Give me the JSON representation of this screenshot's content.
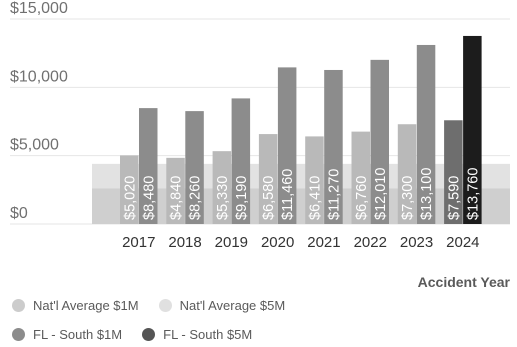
{
  "chart_data": {
    "type": "bar",
    "categories": [
      "2017",
      "2018",
      "2019",
      "2020",
      "2021",
      "2022",
      "2023",
      "2024"
    ],
    "xlabel": "Accident Year",
    "ylabel": "",
    "ylim": [
      0,
      15000
    ],
    "y_ticks": [
      "$0",
      "$5,000",
      "$10,000",
      "$15,000"
    ],
    "y_tick_values": [
      0,
      5000,
      10000,
      15000
    ],
    "grid": true,
    "legend_position": "bottom-left",
    "background_series": [
      {
        "name": "Nat'l Average $1M",
        "value": 2600,
        "color": "#cfcfcf"
      },
      {
        "name": "Nat'l Average $5M",
        "value": 4400,
        "color": "#e2e2e2"
      }
    ],
    "series": [
      {
        "name": "FL - South $1M",
        "values": [
          5020,
          4840,
          5330,
          6580,
          6410,
          6760,
          7300,
          7590
        ],
        "labels": [
          "$5,020",
          "$4,840",
          "$5,330",
          "$6,580",
          "$6,410",
          "$6,760",
          "$7,300",
          "$7,590"
        ]
      },
      {
        "name": "FL - South $5M",
        "values": [
          8480,
          8260,
          9190,
          11460,
          11270,
          12010,
          13100,
          13760
        ],
        "labels": [
          "$8,480",
          "$8,260",
          "$9,190",
          "$11,460",
          "$11,270",
          "$12,010",
          "$13,100",
          "$13,760"
        ]
      }
    ],
    "colors": {
      "fl_1m": "#b9b9b9",
      "fl_1m_last": "#6e6e6e",
      "fl_5m": "#8c8c8c",
      "fl_5m_last": "#1c1c1c",
      "axis_text": "#707070",
      "bar_label": "#ffffff"
    }
  },
  "legend": {
    "items": [
      {
        "label": "Nat'l Average $1M",
        "color": "#cccccc"
      },
      {
        "label": "Nat'l Average $5M",
        "color": "#e0e0e0"
      },
      {
        "label": "FL - South $1M",
        "color": "#8c8c8c"
      },
      {
        "label": "FL - South $5M",
        "color": "#555555"
      }
    ]
  }
}
